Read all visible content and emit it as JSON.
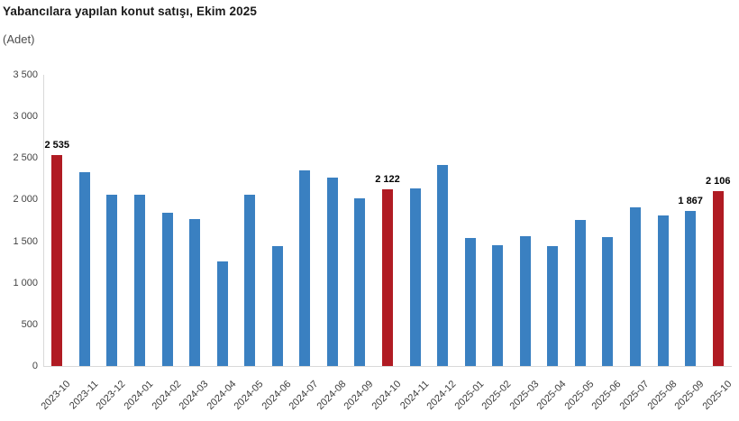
{
  "chart_data": {
    "type": "bar",
    "title": "Yabancılara yapılan konut satışı, Ekim 2025",
    "subtitle": "(Adet)",
    "xlabel": "",
    "ylabel": "Adet",
    "ylim": [
      0,
      3500
    ],
    "grid": false,
    "legend": "none",
    "bar_color": "#3a80c1",
    "highlight_color": "#b01b23",
    "axis_line_color": "#d9d9d9",
    "categories": [
      "2023-10",
      "2023-11",
      "2023-12",
      "2024-01",
      "2024-02",
      "2024-03",
      "2024-04",
      "2024-05",
      "2024-06",
      "2024-07",
      "2024-08",
      "2024-09",
      "2024-10",
      "2024-11",
      "2024-12",
      "2025-01",
      "2025-02",
      "2025-03",
      "2025-04",
      "2025-05",
      "2025-06",
      "2025-07",
      "2025-08",
      "2025-09",
      "2025-10"
    ],
    "values": [
      2535,
      2330,
      2060,
      2060,
      1840,
      1770,
      1260,
      2060,
      1440,
      2350,
      2260,
      2020,
      2122,
      2140,
      2420,
      1540,
      1450,
      1560,
      1440,
      1760,
      1550,
      1910,
      1810,
      1867,
      2106
    ],
    "highlighted_indices": [
      0,
      12,
      24
    ],
    "yticks": [
      {
        "label": "0",
        "value": 0
      },
      {
        "label": "500",
        "value": 500
      },
      {
        "label": "1 000",
        "value": 1000
      },
      {
        "label": "1 500",
        "value": 1500
      },
      {
        "label": "2 000",
        "value": 2000
      },
      {
        "label": "2 500",
        "value": 2500
      },
      {
        "label": "3 000",
        "value": 3000
      },
      {
        "label": "3 500",
        "value": 3500
      }
    ],
    "annotations": [
      {
        "index": 0,
        "text": "2 535"
      },
      {
        "index": 12,
        "text": "2 122"
      },
      {
        "index": 23,
        "text": "1 867"
      },
      {
        "index": 24,
        "text": "2 106"
      }
    ]
  }
}
